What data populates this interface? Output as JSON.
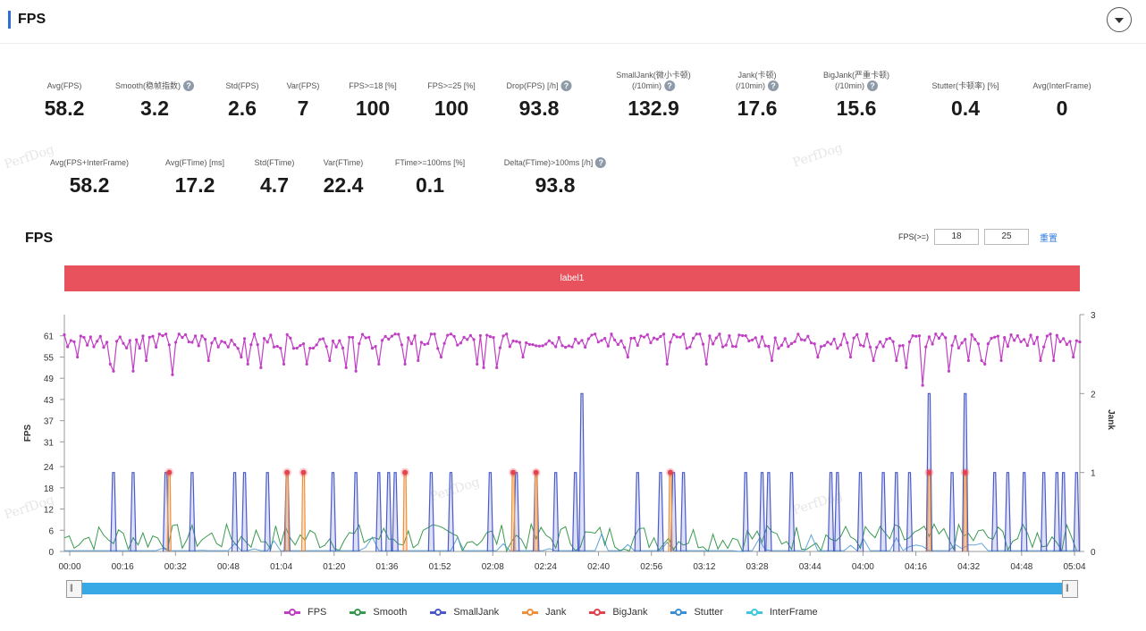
{
  "header": {
    "title": "FPS"
  },
  "metrics_row1": [
    {
      "label": "Avg(FPS)",
      "value": "58.2",
      "help": false
    },
    {
      "label": "Smooth(稳帧指数)",
      "value": "3.2",
      "help": true
    },
    {
      "label": "Std(FPS)",
      "value": "2.6",
      "help": false
    },
    {
      "label": "Var(FPS)",
      "value": "7",
      "help": false
    },
    {
      "label": "FPS>=18 [%]",
      "value": "100",
      "help": false
    },
    {
      "label": "FPS>=25 [%]",
      "value": "100",
      "help": false
    },
    {
      "label": "Drop(FPS) [/h]",
      "value": "93.8",
      "help": true
    },
    {
      "label": "SmallJank(微小卡顿)",
      "label2": "(/10min)",
      "value": "132.9",
      "help": true
    },
    {
      "label": "Jank(卡顿)",
      "label2": "(/10min)",
      "value": "17.6",
      "help": true
    },
    {
      "label": "BigJank(严重卡顿)",
      "label2": "(/10min)",
      "value": "15.6",
      "help": true
    },
    {
      "label": "Stutter(卡顿率) [%]",
      "value": "0.4",
      "help": false
    },
    {
      "label": "Avg(InterFrame)",
      "value": "0",
      "help": false
    }
  ],
  "metrics_row2": [
    {
      "label": "Avg(FPS+InterFrame)",
      "value": "58.2",
      "help": false
    },
    {
      "label": "Avg(FTime) [ms]",
      "value": "17.2",
      "help": false
    },
    {
      "label": "Std(FTime)",
      "value": "4.7",
      "help": false
    },
    {
      "label": "Var(FTime)",
      "value": "22.4",
      "help": false
    },
    {
      "label": "FTime>=100ms [%]",
      "value": "0.1",
      "help": false
    },
    {
      "label": "Delta(FTime)>100ms [/h]",
      "value": "93.8",
      "help": true
    }
  ],
  "watermark": "PerfDog",
  "chart_header": {
    "title": "FPS",
    "fps_threshold_label": "FPS(>=)",
    "threshold_1": "18",
    "threshold_2": "25",
    "reset_label": "重置"
  },
  "label_band": "label1",
  "chart_data": {
    "type": "line",
    "title": "FPS",
    "ylabel": "FPS",
    "y2label": "Jank",
    "y_ticks": [
      0,
      6,
      12,
      18,
      24,
      31,
      37,
      43,
      49,
      55,
      61
    ],
    "y_range": [
      0,
      67
    ],
    "y2_ticks": [
      0,
      1,
      2,
      3
    ],
    "y2_range": [
      0,
      3
    ],
    "x_ticks": [
      "00:00",
      "00:16",
      "00:32",
      "00:48",
      "01:04",
      "01:20",
      "01:36",
      "01:52",
      "02:08",
      "02:24",
      "02:40",
      "02:56",
      "03:12",
      "03:28",
      "03:44",
      "04:00",
      "04:16",
      "04:32",
      "04:48",
      "05:04"
    ],
    "x_range_seconds": [
      0,
      310
    ],
    "series_styles": {
      "FPS": "#c13fc4",
      "Smooth": "#3a9a4f",
      "SmallJank": "#4a5bc9",
      "Jank": "#f0903c",
      "BigJank": "#e2454f",
      "Stutter": "#3a8fd6",
      "InterFrame": "#3ec8e0"
    },
    "fps": {
      "baseline": 59,
      "dips": [
        {
          "t": 4,
          "v": 55
        },
        {
          "t": 14,
          "v": 53
        },
        {
          "t": 15,
          "v": 51
        },
        {
          "t": 21,
          "v": 51
        },
        {
          "t": 25,
          "v": 54
        },
        {
          "t": 33,
          "v": 50
        },
        {
          "t": 44,
          "v": 54
        },
        {
          "t": 54,
          "v": 55
        },
        {
          "t": 56,
          "v": 53
        },
        {
          "t": 60,
          "v": 52
        },
        {
          "t": 67,
          "v": 53
        },
        {
          "t": 74,
          "v": 53
        },
        {
          "t": 81,
          "v": 54
        },
        {
          "t": 86,
          "v": 52
        },
        {
          "t": 89,
          "v": 51
        },
        {
          "t": 96,
          "v": 53
        },
        {
          "t": 104,
          "v": 53
        },
        {
          "t": 108,
          "v": 54
        },
        {
          "t": 115,
          "v": 55
        },
        {
          "t": 126,
          "v": 53
        },
        {
          "t": 128,
          "v": 52
        },
        {
          "t": 132,
          "v": 52
        },
        {
          "t": 140,
          "v": 55
        },
        {
          "t": 172,
          "v": 55
        },
        {
          "t": 184,
          "v": 53
        },
        {
          "t": 196,
          "v": 53
        },
        {
          "t": 216,
          "v": 54
        },
        {
          "t": 230,
          "v": 55
        },
        {
          "t": 240,
          "v": 55
        },
        {
          "t": 254,
          "v": 54
        },
        {
          "t": 262,
          "v": 54
        },
        {
          "t": 270,
          "v": 55
        },
        {
          "t": 276,
          "v": 54
        },
        {
          "t": 280,
          "v": 54
        },
        {
          "t": 286,
          "v": 54
        },
        {
          "t": 302,
          "v": 54
        },
        {
          "t": 262,
          "v": 47
        },
        {
          "t": 257,
          "v": 52
        },
        {
          "t": 247,
          "v": 54
        },
        {
          "t": 270,
          "v": 51
        },
        {
          "t": 281,
          "v": 53
        },
        {
          "t": 298,
          "v": 54
        },
        {
          "t": 308,
          "v": 55
        }
      ]
    },
    "small_jank": [
      {
        "t": 15,
        "v": 1
      },
      {
        "t": 21,
        "v": 1
      },
      {
        "t": 31,
        "v": 1
      },
      {
        "t": 39,
        "v": 1
      },
      {
        "t": 52,
        "v": 1
      },
      {
        "t": 55,
        "v": 1
      },
      {
        "t": 62,
        "v": 1
      },
      {
        "t": 68,
        "v": 1
      },
      {
        "t": 82,
        "v": 1
      },
      {
        "t": 89,
        "v": 1
      },
      {
        "t": 96,
        "v": 1
      },
      {
        "t": 99,
        "v": 1
      },
      {
        "t": 101,
        "v": 1
      },
      {
        "t": 112,
        "v": 1
      },
      {
        "t": 118,
        "v": 1
      },
      {
        "t": 130,
        "v": 1
      },
      {
        "t": 138,
        "v": 1
      },
      {
        "t": 144,
        "v": 1
      },
      {
        "t": 150,
        "v": 1
      },
      {
        "t": 156,
        "v": 1
      },
      {
        "t": 158,
        "v": 2
      },
      {
        "t": 175,
        "v": 1
      },
      {
        "t": 182,
        "v": 1
      },
      {
        "t": 186,
        "v": 1
      },
      {
        "t": 189,
        "v": 1
      },
      {
        "t": 208,
        "v": 1
      },
      {
        "t": 213,
        "v": 1
      },
      {
        "t": 215,
        "v": 1
      },
      {
        "t": 222,
        "v": 1
      },
      {
        "t": 234,
        "v": 1
      },
      {
        "t": 236,
        "v": 1
      },
      {
        "t": 243,
        "v": 1
      },
      {
        "t": 250,
        "v": 1
      },
      {
        "t": 254,
        "v": 1
      },
      {
        "t": 258,
        "v": 1
      },
      {
        "t": 264,
        "v": 2
      },
      {
        "t": 275,
        "v": 2
      },
      {
        "t": 271,
        "v": 1
      },
      {
        "t": 284,
        "v": 1
      },
      {
        "t": 288,
        "v": 1
      },
      {
        "t": 293,
        "v": 1
      },
      {
        "t": 299,
        "v": 1
      },
      {
        "t": 303,
        "v": 1
      },
      {
        "t": 305,
        "v": 1
      },
      {
        "t": 309,
        "v": 1
      }
    ],
    "big_jank": [
      32,
      68,
      73,
      104,
      137,
      144,
      185,
      264,
      275
    ],
    "smooth_noise_max": 0.35
  },
  "legend": [
    "FPS",
    "Smooth",
    "SmallJank",
    "Jank",
    "BigJank",
    "Stutter",
    "InterFrame"
  ]
}
